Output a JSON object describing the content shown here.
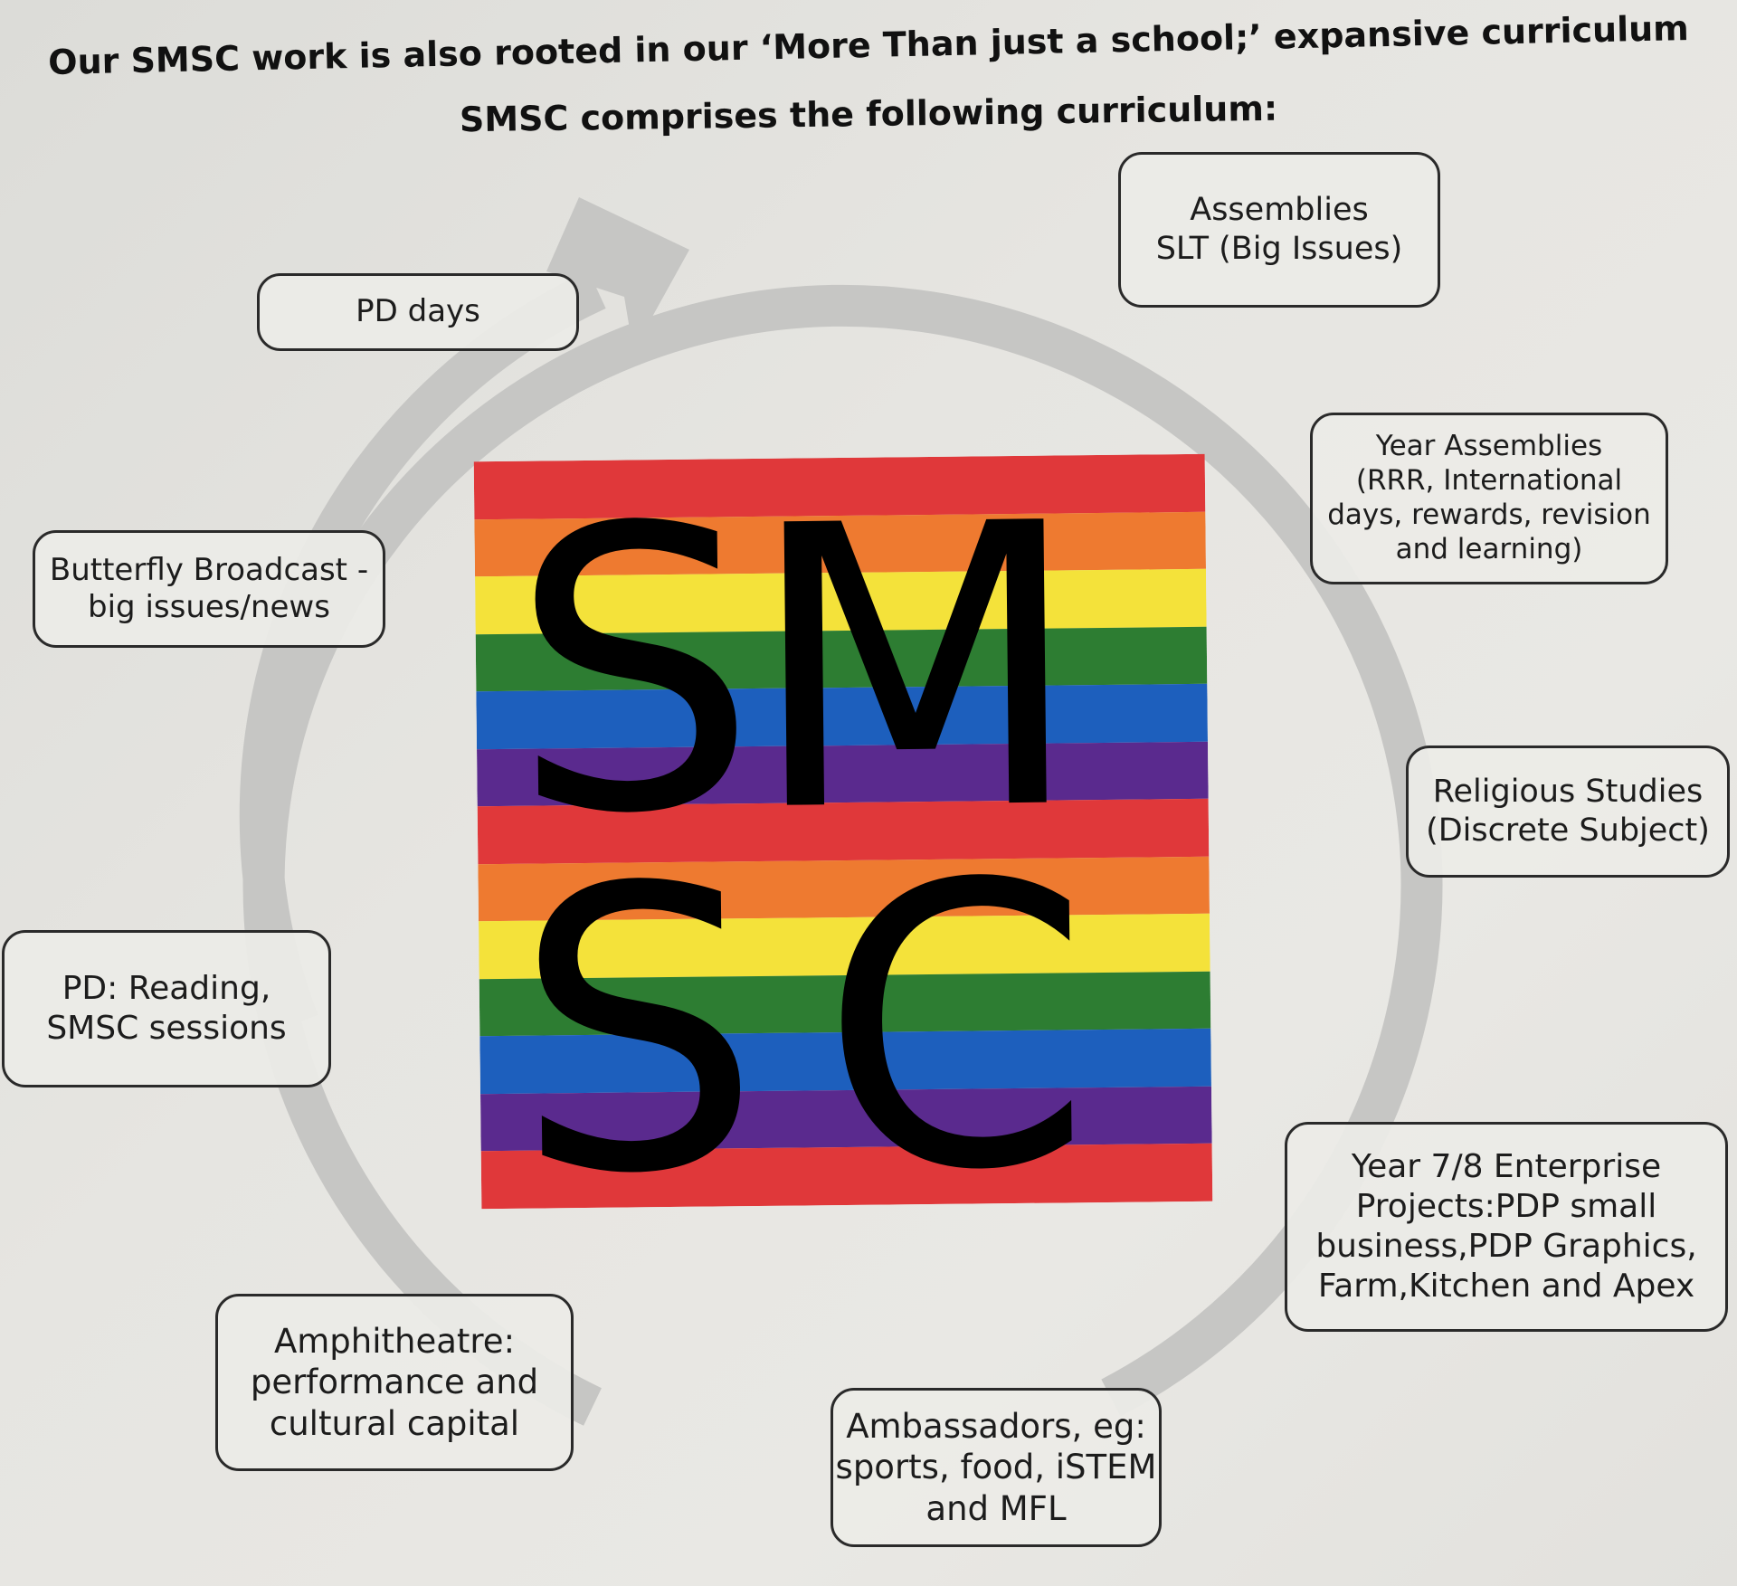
{
  "header": {
    "line1": "Our SMSC work is also rooted in our ‘More Than just a school;’ expansive curriculum",
    "line2": "SMSC comprises the following curriculum:"
  },
  "logo": {
    "letters": [
      "S",
      "M",
      "S",
      "C"
    ],
    "stripe_colors": [
      "#e0383a",
      "#ee7a30",
      "#f4e23a",
      "#2d7d32",
      "#1d5fbd",
      "#5a2a8e"
    ]
  },
  "cycle_items": [
    {
      "id": "pd-days",
      "text": "PD days"
    },
    {
      "id": "assemblies",
      "text": "Assemblies\nSLT (Big Issues)"
    },
    {
      "id": "year-assemblies",
      "text": "Year  Assemblies\n(RRR, International\ndays, rewards, revision\nand learning)"
    },
    {
      "id": "butterfly-broadcast",
      "text": "Butterfly Broadcast -\nbig issues/news"
    },
    {
      "id": "religious-studies",
      "text": "Religious Studies\n(Discrete Subject)"
    },
    {
      "id": "pd-reading",
      "text": "PD: Reading,\nSMSC sessions"
    },
    {
      "id": "enterprise",
      "text": "Year 7/8 Enterprise\nProjects:PDP small\nbusiness,PDP Graphics,\nFarm,Kitchen and Apex"
    },
    {
      "id": "amphitheatre",
      "text": "Amphitheatre:\nperformance and\ncultural capital"
    },
    {
      "id": "ambassadors",
      "text": "Ambassadors, eg:\nsports, food, iSTEM\nand MFL"
    }
  ],
  "colors": {
    "arrow": "#c6c6c4",
    "box_border": "#2a2a2a"
  }
}
